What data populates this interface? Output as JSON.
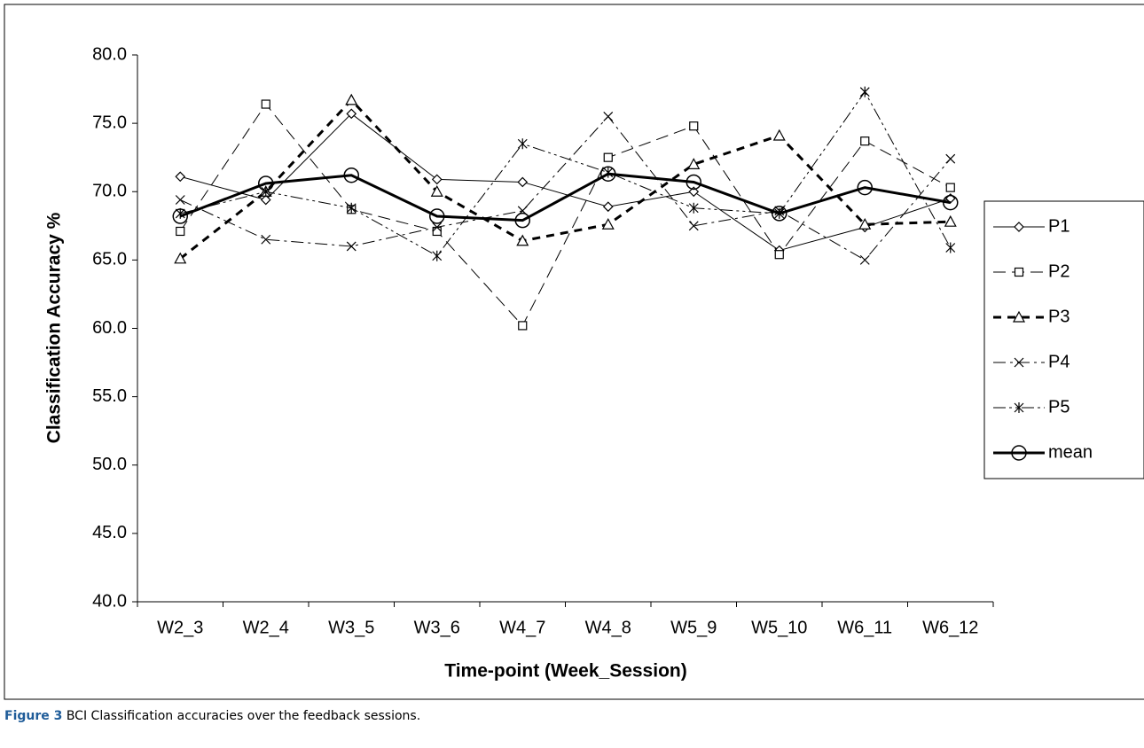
{
  "chart_data": {
    "type": "line",
    "xlabel": "Time-point (Week_Session)",
    "ylabel": "Classification Accuracy %",
    "categories": [
      "W2_3",
      "W2_4",
      "W3_5",
      "W3_6",
      "W4_7",
      "W4_8",
      "W5_9",
      "W5_10",
      "W6_11",
      "W6_12"
    ],
    "ylim": [
      40,
      80
    ],
    "yticks": [
      {
        "value": 40,
        "label": "40.0"
      },
      {
        "value": 45,
        "label": "45.0"
      },
      {
        "value": 50,
        "label": "50.0"
      },
      {
        "value": 55,
        "label": "55.0"
      },
      {
        "value": 60,
        "label": "60.0"
      },
      {
        "value": 65,
        "label": "65.0"
      },
      {
        "value": 70,
        "label": "70.0"
      },
      {
        "value": 75,
        "label": "75.0"
      },
      {
        "value": 80,
        "label": "80.0"
      }
    ],
    "grid": false,
    "legend": "right",
    "series": [
      {
        "name": "P1",
        "color": "#000000",
        "marker": "diamond",
        "dash": "solid",
        "width": 1,
        "values": [
          71.1,
          69.4,
          75.7,
          70.9,
          70.7,
          68.9,
          70.0,
          65.7,
          67.4,
          69.5
        ]
      },
      {
        "name": "P2",
        "color": "#000000",
        "marker": "square",
        "dash": "dashed",
        "width": 1,
        "values": [
          67.1,
          76.4,
          68.7,
          67.1,
          60.2,
          72.5,
          74.8,
          65.4,
          73.7,
          70.3
        ]
      },
      {
        "name": "P3",
        "color": "#000000",
        "marker": "triangle",
        "dash": "heavy-dashed",
        "width": 3,
        "values": [
          65.1,
          70.0,
          76.7,
          70.0,
          66.4,
          67.6,
          72.0,
          74.1,
          67.6,
          67.8
        ]
      },
      {
        "name": "P4",
        "color": "#000000",
        "marker": "x",
        "dash": "dash-dot",
        "width": 1,
        "values": [
          69.4,
          66.5,
          66.0,
          67.4,
          68.6,
          75.5,
          67.5,
          68.6,
          65.0,
          72.4
        ]
      },
      {
        "name": "P5",
        "color": "#000000",
        "marker": "star",
        "dash": "dash-dot-dot",
        "width": 1,
        "values": [
          68.4,
          70.0,
          68.8,
          65.3,
          73.5,
          71.4,
          68.8,
          68.4,
          77.3,
          65.9
        ]
      },
      {
        "name": "mean",
        "color": "#000000",
        "marker": "circle",
        "dash": "solid",
        "width": 3,
        "values": [
          68.2,
          70.6,
          71.2,
          68.2,
          67.9,
          71.3,
          70.7,
          68.4,
          70.3,
          69.2
        ]
      }
    ]
  },
  "caption": {
    "label": "Figure 3",
    "text": "BCI Classification accuracies over the feedback sessions."
  }
}
